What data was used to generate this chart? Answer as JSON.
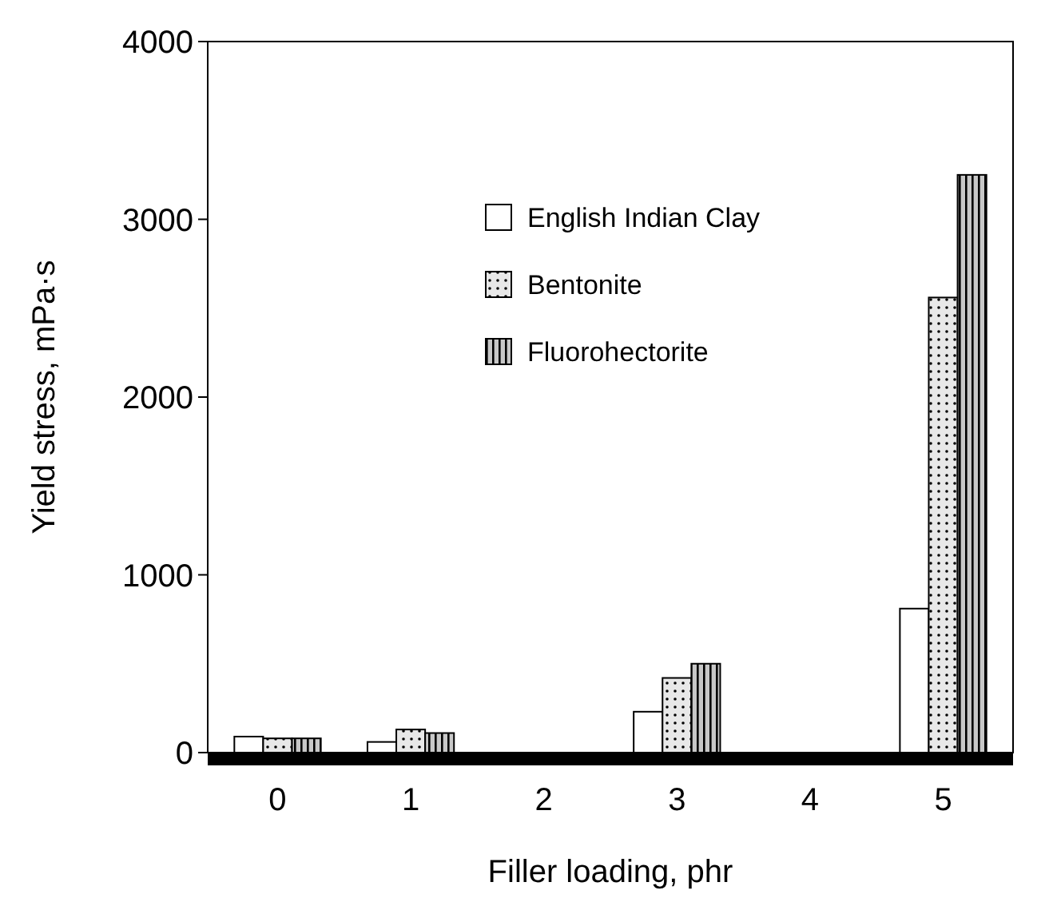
{
  "chart_data": {
    "type": "bar",
    "xlabel": "Filler loading, phr",
    "ylabel": "Yield stress, mPa·s",
    "categories": [
      "0",
      "1",
      "2",
      "3",
      "4",
      "5"
    ],
    "series": [
      {
        "name": "English Indian Clay",
        "color": "#ffffff",
        "values": [
          90,
          60,
          null,
          230,
          null,
          810
        ]
      },
      {
        "name": "Bentonite",
        "color": "#e8e8e8",
        "values": [
          80,
          130,
          null,
          420,
          null,
          2560
        ]
      },
      {
        "name": "Fluorohectorite",
        "color": "#c8c8c8",
        "values": [
          80,
          110,
          null,
          500,
          null,
          3250
        ]
      }
    ],
    "ylim": [
      0,
      4000
    ],
    "yticks": [
      0,
      1000,
      2000,
      3000,
      4000
    ],
    "legend": "top right"
  }
}
